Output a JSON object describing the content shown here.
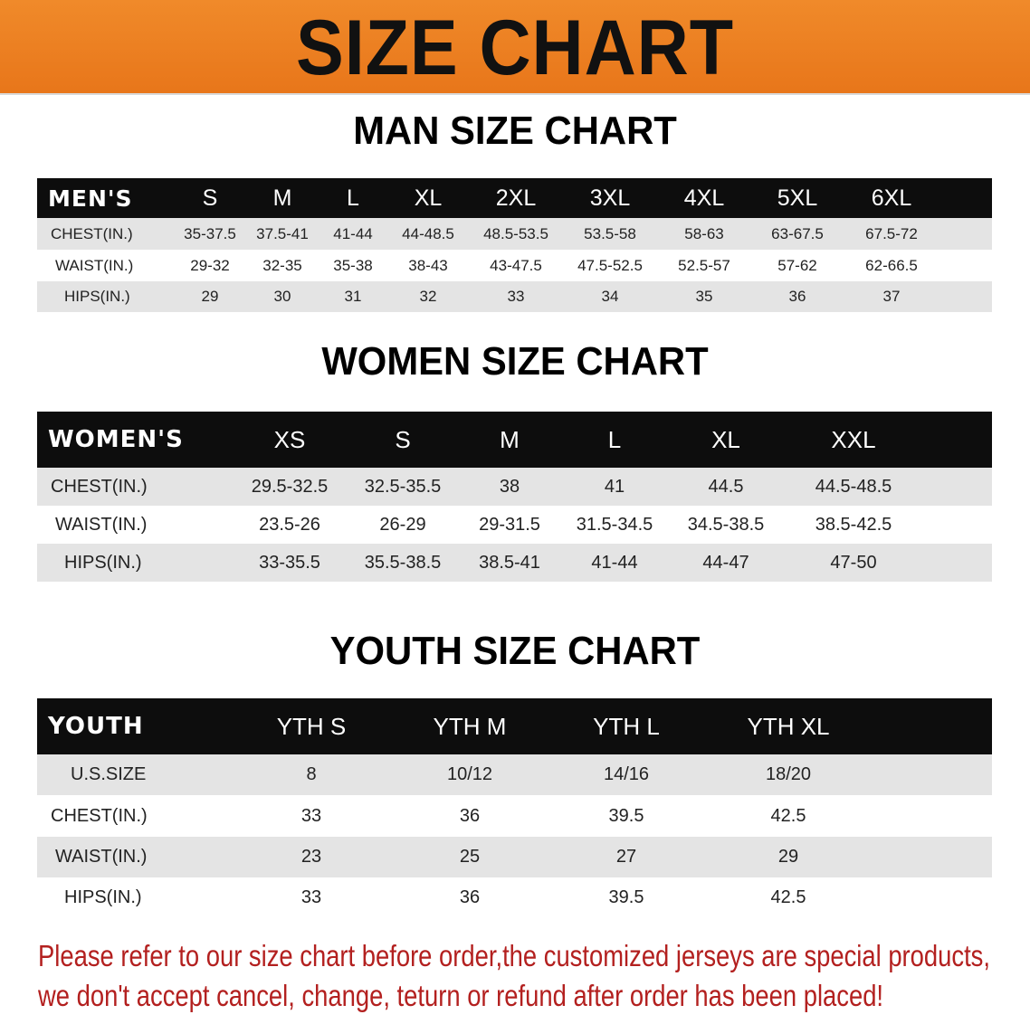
{
  "title": "SIZE CHART",
  "colors": {
    "banner": "#e8781a",
    "header_bg": "#0d0d0d",
    "row_gray": "#e4e4e4",
    "notice_text": "#b3201f"
  },
  "men": {
    "heading": "MAN SIZE CHART",
    "columns": [
      "MEN'S",
      "S",
      "M",
      "L",
      "XL",
      "2XL",
      "3XL",
      "4XL",
      "5XL",
      "6XL"
    ],
    "rows": [
      [
        "CHEST(IN.)",
        "35-37.5",
        "37.5-41",
        "41-44",
        "44-48.5",
        "48.5-53.5",
        "53.5-58",
        "58-63",
        "63-67.5",
        "67.5-72"
      ],
      [
        "WAIST(IN.)",
        "29-32",
        "32-35",
        "35-38",
        "38-43",
        "43-47.5",
        "47.5-52.5",
        "52.5-57",
        "57-62",
        "62-66.5"
      ],
      [
        "HIPS(IN.)",
        "29",
        "30",
        "31",
        "32",
        "33",
        "34",
        "35",
        "36",
        "37"
      ]
    ]
  },
  "women": {
    "heading": "WOMEN SIZE CHART",
    "columns": [
      "WOMEN'S",
      "XS",
      "S",
      "M",
      "L",
      "XL",
      "XXL"
    ],
    "rows": [
      [
        "CHEST(IN.)",
        "29.5-32.5",
        "32.5-35.5",
        "38",
        "41",
        "44.5",
        "44.5-48.5"
      ],
      [
        "WAIST(IN.)",
        "23.5-26",
        "26-29",
        "29-31.5",
        "31.5-34.5",
        "34.5-38.5",
        "38.5-42.5"
      ],
      [
        "HIPS(IN.)",
        "33-35.5",
        "35.5-38.5",
        "38.5-41",
        "41-44",
        "44-47",
        "47-50"
      ]
    ]
  },
  "youth": {
    "heading": "YOUTH SIZE CHART",
    "columns": [
      "YOUTH",
      "YTH S",
      "YTH M",
      "YTH L",
      "YTH XL"
    ],
    "rows": [
      [
        "U.S.SIZE",
        "8",
        "10/12",
        "14/16",
        "18/20"
      ],
      [
        "CHEST(IN.)",
        "33",
        "36",
        "39.5",
        "42.5"
      ],
      [
        "WAIST(IN.)",
        "23",
        "25",
        "27",
        "29"
      ],
      [
        "HIPS(IN.)",
        "33",
        "36",
        "39.5",
        "42.5"
      ]
    ]
  },
  "notice": {
    "line1": "Please refer to our size chart before order,the customized jerseys are special products,",
    "line2": "we don't accept cancel, change, teturn or refund after order has been placed!"
  }
}
